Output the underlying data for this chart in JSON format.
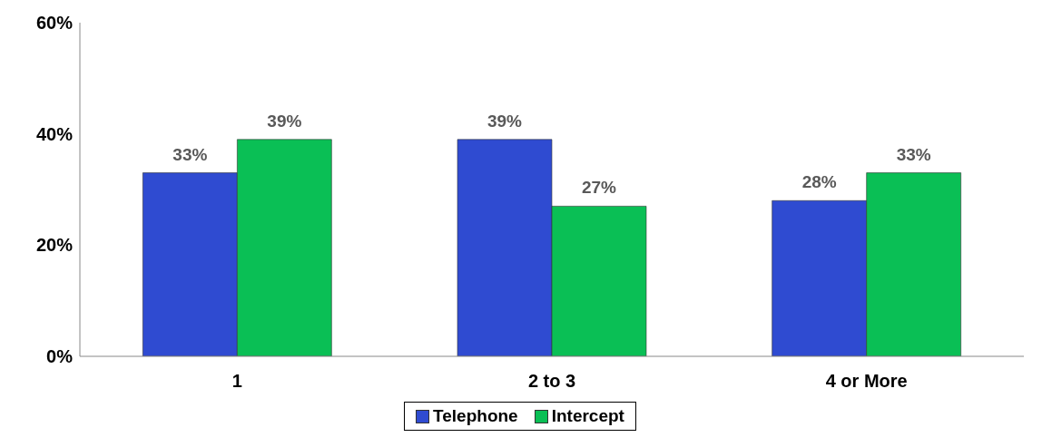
{
  "chart_data": {
    "type": "bar",
    "categories": [
      "1",
      "2 to 3",
      "4 or More"
    ],
    "series": [
      {
        "name": "Telephone",
        "color": "#2f4bd1",
        "values": [
          33,
          39,
          28
        ],
        "value_labels": [
          "33%",
          "39%",
          "28%"
        ]
      },
      {
        "name": "Intercept",
        "color": "#0abf55",
        "values": [
          39,
          27,
          33
        ],
        "value_labels": [
          "39%",
          "27%",
          "33%"
        ]
      }
    ],
    "ylim": [
      0,
      60
    ],
    "yticks": [
      {
        "value": 0,
        "label": "0%"
      },
      {
        "value": 20,
        "label": "20%"
      },
      {
        "value": 40,
        "label": "40%"
      },
      {
        "value": 60,
        "label": "60%"
      }
    ],
    "grid": false,
    "legend": "bottom"
  }
}
